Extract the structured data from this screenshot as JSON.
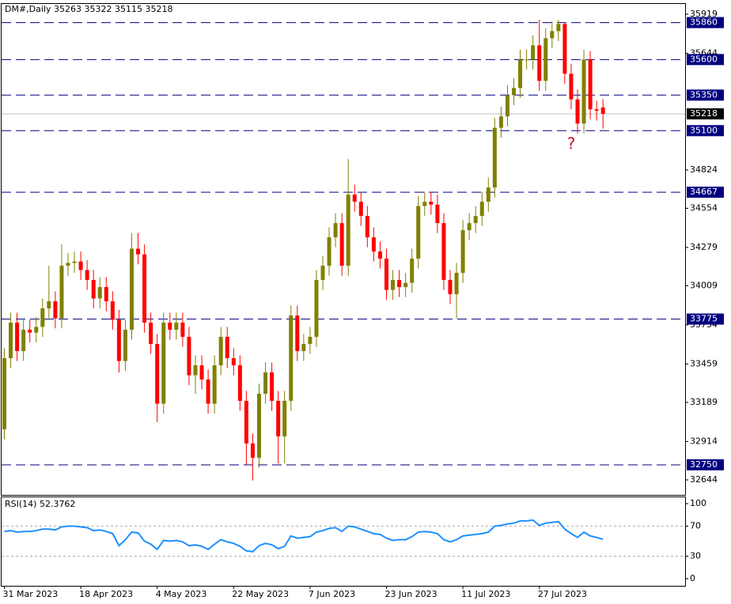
{
  "chart_data": {
    "type": "candlestick",
    "title": "DM#,Daily  35263 35322 35115 35218",
    "categories": [
      "31 Mar 2023",
      null,
      null,
      null,
      null,
      null,
      null,
      null,
      null,
      null,
      null,
      null,
      "18 Apr 2023",
      null,
      null,
      null,
      null,
      null,
      null,
      null,
      null,
      null,
      null,
      null,
      "4 May 2023",
      null,
      null,
      null,
      null,
      null,
      null,
      null,
      null,
      null,
      null,
      null,
      "22 May 2023",
      null,
      null,
      null,
      null,
      null,
      null,
      null,
      null,
      null,
      null,
      null,
      "7 Jun 2023",
      null,
      null,
      null,
      null,
      null,
      null,
      null,
      null,
      null,
      null,
      null,
      "23 Jun 2023",
      null,
      null,
      null,
      null,
      null,
      null,
      null,
      null,
      null,
      null,
      null,
      "11 Jul 2023",
      null,
      null,
      null,
      null,
      null,
      null,
      null,
      null,
      null,
      null,
      null,
      "27 Jul 2023",
      null,
      null,
      null,
      null,
      null,
      null,
      null,
      null,
      null,
      null
    ],
    "open": [
      33000,
      33500,
      33750,
      33550,
      33700,
      33680,
      33720,
      33850,
      33900,
      33780,
      34150,
      34170,
      34180,
      34120,
      34050,
      33920,
      34000,
      33900,
      33770,
      33480,
      33700,
      34270,
      34230,
      33750,
      33600,
      33180,
      33750,
      33700,
      33750,
      33650,
      33380,
      33450,
      33350,
      33180,
      33450,
      33650,
      33500,
      33450,
      33200,
      32900,
      32800,
      33250,
      33400,
      33200,
      32950,
      33200,
      33800,
      33550,
      33600,
      33650,
      34050,
      34150,
      34350,
      34450,
      34150,
      34650,
      34600,
      34500,
      34350,
      34250,
      34200,
      33980,
      34050,
      34000,
      34030,
      34200,
      34570,
      34600,
      34580,
      34450,
      34050,
      33950,
      34100,
      34400,
      34450,
      34500,
      34600,
      34700,
      35120,
      35200,
      35350,
      35400,
      35600,
      35600,
      35700,
      35450,
      35750,
      35800,
      35850,
      35500,
      35320,
      35150,
      35600,
      35250,
      35263
    ],
    "high": [
      33570,
      33820,
      33820,
      33770,
      33770,
      33790,
      33920,
      34150,
      33970,
      34300,
      34240,
      34250,
      34250,
      34190,
      34120,
      34070,
      34070,
      33970,
      33840,
      33770,
      34380,
      34380,
      34300,
      33820,
      33670,
      33820,
      33820,
      33820,
      33820,
      33720,
      33520,
      33520,
      33420,
      33520,
      33720,
      33720,
      33570,
      33520,
      33270,
      32970,
      33320,
      33470,
      33470,
      33270,
      33270,
      33870,
      33870,
      33670,
      33720,
      34120,
      34220,
      34420,
      34520,
      34520,
      34900,
      34720,
      34670,
      34570,
      34420,
      34320,
      34270,
      34120,
      34120,
      34100,
      34270,
      34640,
      34670,
      34670,
      34650,
      34520,
      34120,
      34170,
      34470,
      34520,
      34570,
      34670,
      34770,
      35190,
      35270,
      35420,
      35470,
      35670,
      35670,
      35770,
      35880,
      35820,
      35870,
      35880,
      35860,
      35570,
      35390,
      35670,
      35660,
      35310,
      35322
    ],
    "low": [
      32930,
      33430,
      33480,
      33480,
      33610,
      33610,
      33650,
      33780,
      33710,
      33710,
      34080,
      34100,
      34050,
      33980,
      33850,
      33850,
      33830,
      33700,
      33400,
      33410,
      33630,
      34160,
      33680,
      33530,
      33050,
      33110,
      33630,
      33630,
      33580,
      33310,
      33250,
      33280,
      33110,
      33110,
      33380,
      33430,
      33380,
      33130,
      32750,
      32640,
      32730,
      33180,
      33130,
      32760,
      32760,
      33130,
      33480,
      33480,
      33530,
      33580,
      33980,
      34080,
      34280,
      34080,
      34080,
      34530,
      34430,
      34280,
      34180,
      34130,
      33910,
      33910,
      33930,
      33930,
      33960,
      34130,
      34500,
      34510,
      34380,
      33980,
      33880,
      33780,
      34030,
      34330,
      34380,
      34430,
      34530,
      34630,
      35050,
      35130,
      35280,
      35330,
      35530,
      35530,
      35380,
      35380,
      35680,
      35730,
      35430,
      35250,
      35080,
      35080,
      35180,
      35170,
      35115
    ],
    "close": [
      33500,
      33750,
      33550,
      33700,
      33680,
      33720,
      33850,
      33900,
      33780,
      34150,
      34170,
      34180,
      34120,
      34050,
      33920,
      34000,
      33900,
      33770,
      33480,
      33700,
      34270,
      34230,
      33750,
      33600,
      33180,
      33750,
      33700,
      33750,
      33650,
      33380,
      33450,
      33350,
      33180,
      33450,
      33650,
      33500,
      33450,
      33200,
      32900,
      32800,
      33250,
      33400,
      33200,
      32950,
      33200,
      33800,
      33550,
      33600,
      33650,
      34050,
      34150,
      34350,
      34450,
      34150,
      34650,
      34600,
      34500,
      34350,
      34250,
      34200,
      33980,
      34050,
      34000,
      34030,
      34200,
      34570,
      34600,
      34580,
      34450,
      34050,
      33950,
      34100,
      34400,
      34450,
      34500,
      34600,
      34700,
      35120,
      35200,
      35350,
      35400,
      35600,
      35600,
      35700,
      35450,
      35750,
      35800,
      35850,
      35500,
      35320,
      35150,
      35600,
      35250,
      35240,
      35218
    ],
    "bull_color": "#808000",
    "bear_color": "#ff0000",
    "ylim": [
      32544,
      35991
    ],
    "yticks": [
      35919,
      35644,
      34824,
      34554,
      34279,
      34009,
      33734,
      33459,
      33189,
      32914,
      32644
    ],
    "levels": [
      35860,
      35600,
      35350,
      35100,
      34667,
      33775,
      32750
    ],
    "level_color": "#000080",
    "current_price": 35218,
    "current_price_color": "#c0c0c0",
    "annotation": "?",
    "annotation_color": "#c8102e",
    "rsi": {
      "type": "line",
      "title": "RSI(14) 52.3762",
      "color": "#1e90ff",
      "values": [
        63,
        64,
        62,
        63,
        63,
        64,
        66,
        66,
        65,
        69,
        70,
        70,
        69,
        68,
        64,
        65,
        63,
        60,
        44,
        52,
        62,
        61,
        50,
        46,
        39,
        51,
        50,
        51,
        49,
        44,
        45,
        43,
        39,
        46,
        52,
        49,
        47,
        43,
        37,
        36,
        44,
        47,
        45,
        40,
        43,
        57,
        54,
        55,
        56,
        62,
        64,
        67,
        68,
        63,
        70,
        69,
        66,
        63,
        60,
        59,
        54,
        51,
        52,
        52,
        56,
        62,
        63,
        62,
        60,
        52,
        49,
        52,
        57,
        58,
        59,
        60,
        62,
        70,
        71,
        73,
        74,
        77,
        77,
        78,
        71,
        74,
        75,
        76,
        66,
        60,
        55,
        62,
        57,
        55,
        52.3762
      ],
      "ylim": [
        -9.5,
        109.5
      ],
      "yticks": [
        100,
        70,
        30,
        0
      ],
      "levels": [
        70,
        30
      ]
    }
  }
}
